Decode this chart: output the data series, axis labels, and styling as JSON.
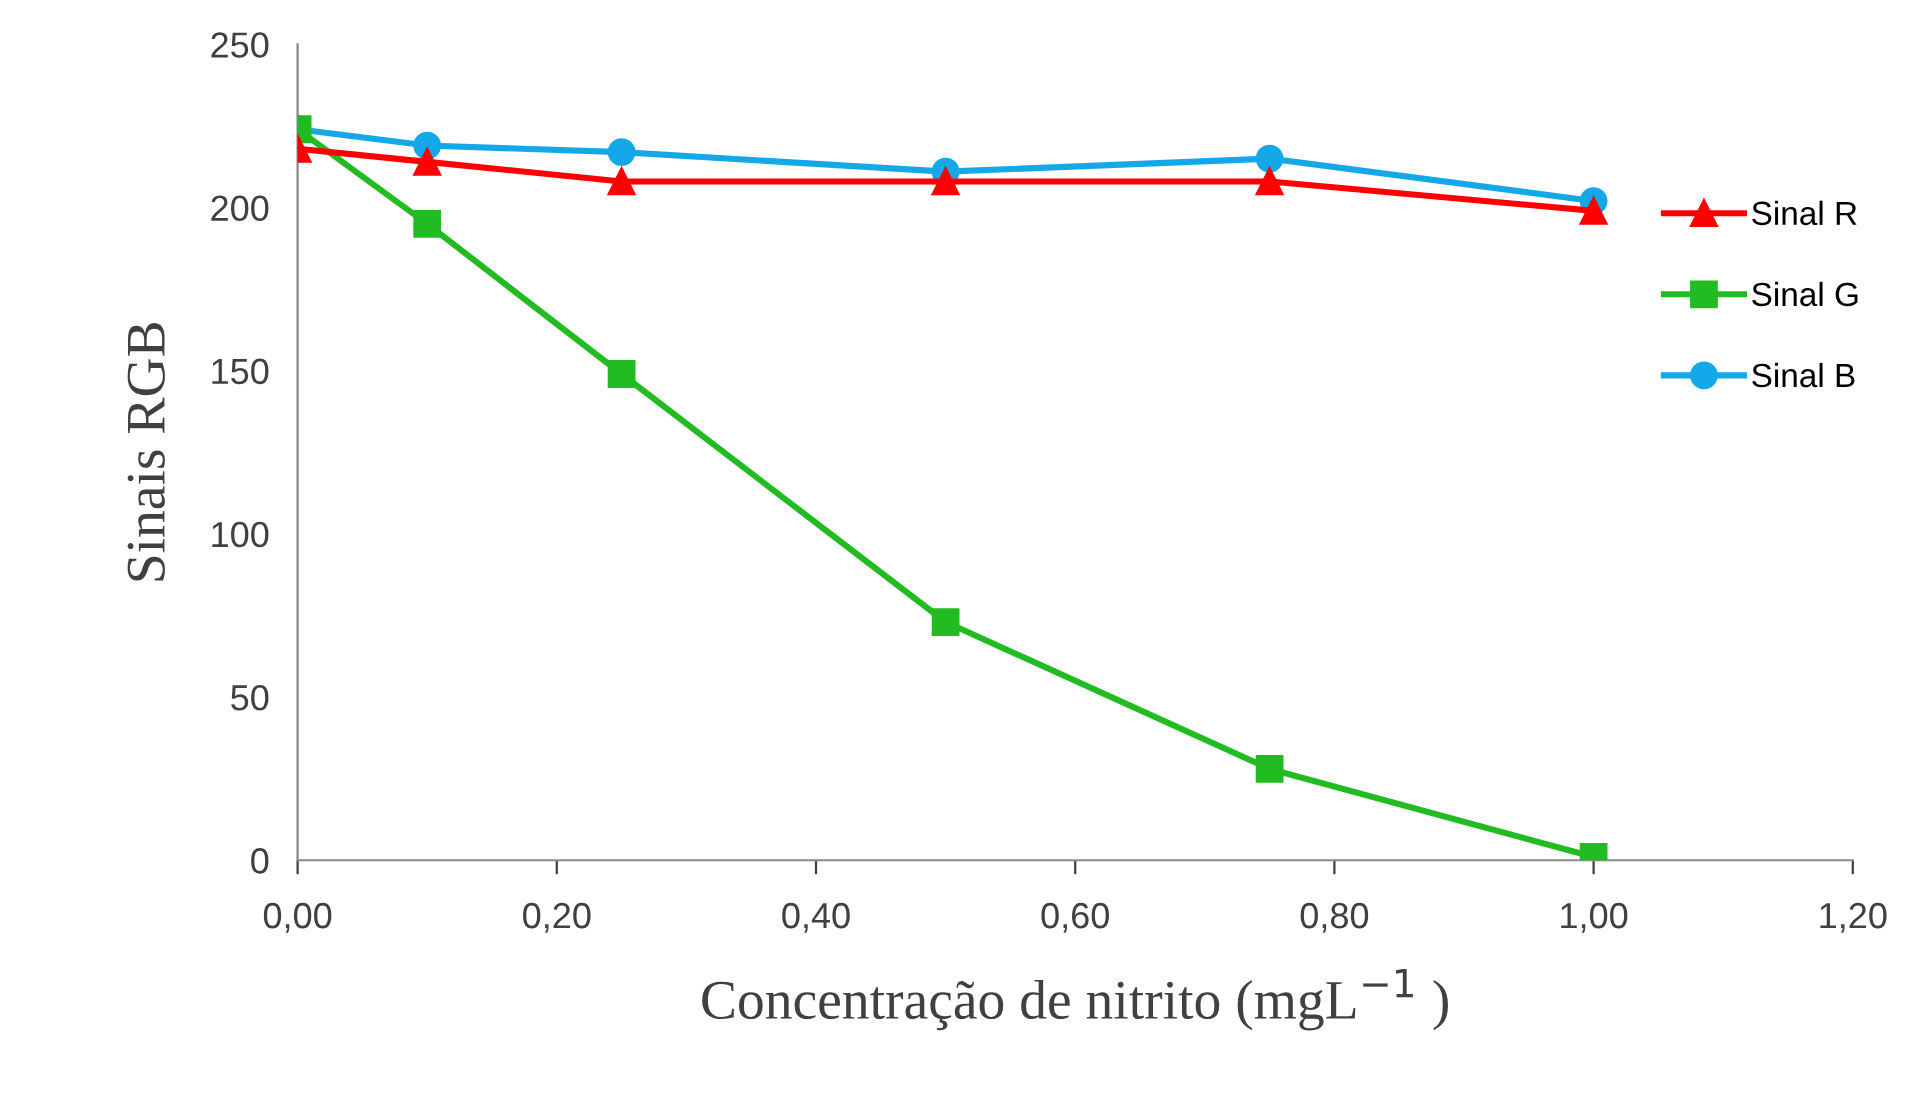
{
  "chart_data": {
    "type": "line",
    "xlabel": "Concentração de nitrito (mgL$^{−1}$ )",
    "ylabel": "Sinais RGB",
    "x": [
      0,
      0.1,
      0.25,
      0.5,
      0.75,
      1.0
    ],
    "series": [
      {
        "name": "Sinal R",
        "color": "#ff0000",
        "marker": "triangle",
        "values": [
          218,
          214,
          208,
          208,
          208,
          199
        ]
      },
      {
        "name": "Sinal G",
        "color": "#22bb22",
        "marker": "square",
        "values": [
          224,
          195,
          149,
          73,
          28,
          1
        ]
      },
      {
        "name": "Sinal B",
        "color": "#14a8e8",
        "marker": "circle",
        "values": [
          224,
          219,
          217,
          211,
          215,
          202
        ]
      }
    ],
    "xlim": [
      0,
      1.2
    ],
    "xticks": [
      {
        "value": 0,
        "label": "0,00"
      },
      {
        "value": 0.2,
        "label": "0,20"
      },
      {
        "value": 0.4,
        "label": "0,40"
      },
      {
        "value": 0.6,
        "label": "0,60"
      },
      {
        "value": 0.8,
        "label": "0,80"
      },
      {
        "value": 1.0,
        "label": "1,00"
      },
      {
        "value": 1.2,
        "label": "1,20"
      }
    ],
    "ylim": [
      0,
      250
    ],
    "yticks": [
      0,
      50,
      100,
      150,
      200,
      250
    ],
    "grid": false,
    "legend": "right",
    "line_style": "solid"
  }
}
